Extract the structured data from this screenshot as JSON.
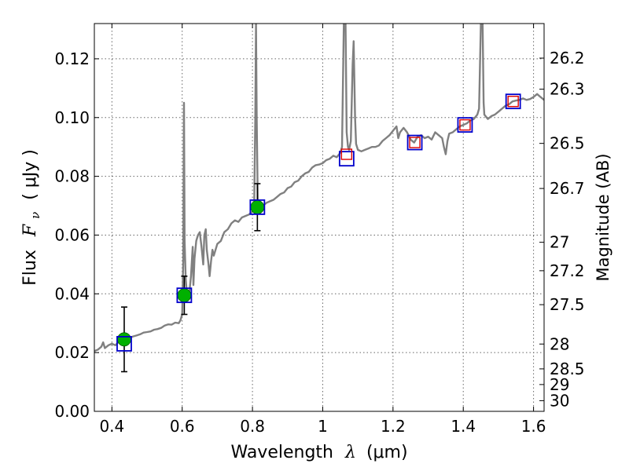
{
  "chart_data": {
    "type": "scatter",
    "xlabel_main": "Wavelength",
    "xlabel_symbol": "λ",
    "xlabel_unit": "(μm)",
    "ylabel_main": "Flux",
    "ylabel_symbol": "F",
    "ylabel_sub": "ν",
    "ylabel_unit": "( μJy )",
    "ylabel_right": "Magnitude (AB)",
    "xlim": [
      0.35,
      1.63
    ],
    "ylim": [
      0.0,
      0.132
    ],
    "grid": true,
    "x_ticks": [
      {
        "value": 0.4,
        "label": "0.4"
      },
      {
        "value": 0.6,
        "label": "0.6"
      },
      {
        "value": 0.8,
        "label": "0.8"
      },
      {
        "value": 1.0,
        "label": "1"
      },
      {
        "value": 1.2,
        "label": "1.2"
      },
      {
        "value": 1.4,
        "label": "1.4"
      },
      {
        "value": 1.6,
        "label": "1.6"
      }
    ],
    "y_ticks": [
      {
        "value": 0.0,
        "label": "0.00"
      },
      {
        "value": 0.02,
        "label": "0.02"
      },
      {
        "value": 0.04,
        "label": "0.04"
      },
      {
        "value": 0.06,
        "label": "0.06"
      },
      {
        "value": 0.08,
        "label": "0.08"
      },
      {
        "value": 0.1,
        "label": "0.10"
      },
      {
        "value": 0.12,
        "label": "0.12"
      }
    ],
    "right_ticks": [
      {
        "mag": 26.2,
        "label": "26.2"
      },
      {
        "mag": 26.3,
        "label": "26.3"
      },
      {
        "mag": 26.5,
        "label": "26.5"
      },
      {
        "mag": 26.7,
        "label": "26.7"
      },
      {
        "mag": 27.0,
        "label": "27"
      },
      {
        "mag": 27.2,
        "label": "27.2"
      },
      {
        "mag": 27.5,
        "label": "27.5"
      },
      {
        "mag": 28.0,
        "label": "28"
      },
      {
        "mag": 28.5,
        "label": "28.5"
      },
      {
        "mag": 29.0,
        "label": "29"
      },
      {
        "mag": 30.0,
        "label": "30"
      }
    ],
    "spectrum": {
      "color": "#808080",
      "points": [
        [
          0.35,
          0.0205
        ],
        [
          0.36,
          0.021
        ],
        [
          0.37,
          0.022
        ],
        [
          0.375,
          0.0235
        ],
        [
          0.38,
          0.0215
        ],
        [
          0.39,
          0.0225
        ],
        [
          0.4,
          0.023
        ],
        [
          0.41,
          0.0225
        ],
        [
          0.42,
          0.0238
        ],
        [
          0.43,
          0.0245
        ],
        [
          0.44,
          0.024
        ],
        [
          0.45,
          0.025
        ],
        [
          0.46,
          0.0255
        ],
        [
          0.47,
          0.0258
        ],
        [
          0.48,
          0.0262
        ],
        [
          0.49,
          0.0268
        ],
        [
          0.5,
          0.027
        ],
        [
          0.51,
          0.0272
        ],
        [
          0.52,
          0.0278
        ],
        [
          0.53,
          0.028
        ],
        [
          0.54,
          0.0284
        ],
        [
          0.55,
          0.0292
        ],
        [
          0.56,
          0.0296
        ],
        [
          0.57,
          0.0295
        ],
        [
          0.58,
          0.0302
        ],
        [
          0.59,
          0.03
        ],
        [
          0.595,
          0.031
        ],
        [
          0.6,
          0.033
        ],
        [
          0.603,
          0.052
        ],
        [
          0.605,
          0.105
        ],
        [
          0.607,
          0.058
        ],
        [
          0.61,
          0.045
        ],
        [
          0.615,
          0.038
        ],
        [
          0.62,
          0.04
        ],
        [
          0.625,
          0.046
        ],
        [
          0.63,
          0.056
        ],
        [
          0.632,
          0.043
        ],
        [
          0.635,
          0.052
        ],
        [
          0.64,
          0.058
        ],
        [
          0.645,
          0.06
        ],
        [
          0.65,
          0.061
        ],
        [
          0.655,
          0.056
        ],
        [
          0.66,
          0.05
        ],
        [
          0.663,
          0.06
        ],
        [
          0.667,
          0.062
        ],
        [
          0.67,
          0.055
        ],
        [
          0.675,
          0.05
        ],
        [
          0.678,
          0.046
        ],
        [
          0.682,
          0.051
        ],
        [
          0.686,
          0.055
        ],
        [
          0.69,
          0.053
        ],
        [
          0.7,
          0.057
        ],
        [
          0.71,
          0.058
        ],
        [
          0.72,
          0.061
        ],
        [
          0.73,
          0.062
        ],
        [
          0.74,
          0.064
        ],
        [
          0.75,
          0.065
        ],
        [
          0.76,
          0.0645
        ],
        [
          0.77,
          0.066
        ],
        [
          0.78,
          0.0665
        ],
        [
          0.79,
          0.067
        ],
        [
          0.8,
          0.068
        ],
        [
          0.805,
          0.07
        ],
        [
          0.808,
          0.1
        ],
        [
          0.81,
          0.132
        ],
        [
          0.812,
          0.1
        ],
        [
          0.815,
          0.072
        ],
        [
          0.82,
          0.069
        ],
        [
          0.83,
          0.07
        ],
        [
          0.84,
          0.071
        ],
        [
          0.85,
          0.0715
        ],
        [
          0.86,
          0.072
        ],
        [
          0.87,
          0.073
        ],
        [
          0.88,
          0.074
        ],
        [
          0.89,
          0.0745
        ],
        [
          0.9,
          0.076
        ],
        [
          0.91,
          0.0765
        ],
        [
          0.92,
          0.078
        ],
        [
          0.93,
          0.0785
        ],
        [
          0.94,
          0.08
        ],
        [
          0.95,
          0.081
        ],
        [
          0.96,
          0.0815
        ],
        [
          0.97,
          0.083
        ],
        [
          0.98,
          0.0838
        ],
        [
          0.99,
          0.084
        ],
        [
          1.0,
          0.0845
        ],
        [
          1.01,
          0.0855
        ],
        [
          1.02,
          0.086
        ],
        [
          1.03,
          0.087
        ],
        [
          1.04,
          0.0865
        ],
        [
          1.05,
          0.088
        ],
        [
          1.055,
          0.09
        ],
        [
          1.06,
          0.132
        ],
        [
          1.065,
          0.132
        ],
        [
          1.068,
          0.095
        ],
        [
          1.072,
          0.09
        ],
        [
          1.075,
          0.089
        ],
        [
          1.08,
          0.092
        ],
        [
          1.085,
          0.118
        ],
        [
          1.088,
          0.126
        ],
        [
          1.092,
          0.1
        ],
        [
          1.095,
          0.091
        ],
        [
          1.1,
          0.089
        ],
        [
          1.11,
          0.0885
        ],
        [
          1.12,
          0.089
        ],
        [
          1.13,
          0.0895
        ],
        [
          1.14,
          0.09
        ],
        [
          1.15,
          0.09
        ],
        [
          1.16,
          0.0905
        ],
        [
          1.17,
          0.092
        ],
        [
          1.18,
          0.093
        ],
        [
          1.19,
          0.094
        ],
        [
          1.2,
          0.0955
        ],
        [
          1.21,
          0.097
        ],
        [
          1.215,
          0.093
        ],
        [
          1.22,
          0.095
        ],
        [
          1.23,
          0.0965
        ],
        [
          1.24,
          0.095
        ],
        [
          1.25,
          0.0925
        ],
        [
          1.26,
          0.0915
        ],
        [
          1.27,
          0.0935
        ],
        [
          1.28,
          0.094
        ],
        [
          1.29,
          0.093
        ],
        [
          1.3,
          0.0935
        ],
        [
          1.31,
          0.0925
        ],
        [
          1.32,
          0.095
        ],
        [
          1.33,
          0.094
        ],
        [
          1.34,
          0.093
        ],
        [
          1.345,
          0.09
        ],
        [
          1.35,
          0.0875
        ],
        [
          1.355,
          0.092
        ],
        [
          1.36,
          0.0945
        ],
        [
          1.37,
          0.095
        ],
        [
          1.38,
          0.096
        ],
        [
          1.39,
          0.097
        ],
        [
          1.4,
          0.0975
        ],
        [
          1.41,
          0.098
        ],
        [
          1.42,
          0.099
        ],
        [
          1.43,
          0.0995
        ],
        [
          1.44,
          0.101
        ],
        [
          1.445,
          0.103
        ],
        [
          1.45,
          0.132
        ],
        [
          1.455,
          0.132
        ],
        [
          1.458,
          0.105
        ],
        [
          1.46,
          0.101
        ],
        [
          1.47,
          0.0995
        ],
        [
          1.48,
          0.1005
        ],
        [
          1.49,
          0.101
        ],
        [
          1.5,
          0.102
        ],
        [
          1.51,
          0.103
        ],
        [
          1.52,
          0.104
        ],
        [
          1.53,
          0.1045
        ],
        [
          1.54,
          0.1055
        ],
        [
          1.55,
          0.1058
        ],
        [
          1.56,
          0.106
        ],
        [
          1.57,
          0.1065
        ],
        [
          1.58,
          0.106
        ],
        [
          1.59,
          0.1063
        ],
        [
          1.6,
          0.107
        ],
        [
          1.61,
          0.108
        ],
        [
          1.62,
          0.107
        ],
        [
          1.63,
          0.106
        ]
      ]
    },
    "observed_points": {
      "color": "#00b000",
      "values": [
        {
          "x": 0.435,
          "y": 0.0245,
          "err_low": 0.011,
          "err_high": 0.011
        },
        {
          "x": 0.606,
          "y": 0.0395,
          "err_low": 0.0065,
          "err_high": 0.0065
        },
        {
          "x": 0.814,
          "y": 0.0695,
          "err_low": 0.008,
          "err_high": 0.008
        }
      ]
    },
    "model_boxes_blue": {
      "color": "#0000cc",
      "values": [
        {
          "x": 0.435,
          "y": 0.023
        },
        {
          "x": 0.606,
          "y": 0.0395
        },
        {
          "x": 0.814,
          "y": 0.0695
        },
        {
          "x": 1.068,
          "y": 0.086
        },
        {
          "x": 1.262,
          "y": 0.0915
        },
        {
          "x": 1.405,
          "y": 0.0975
        },
        {
          "x": 1.542,
          "y": 0.1055
        }
      ]
    },
    "model_boxes_red": {
      "color": "#dd0000",
      "values": [
        {
          "x": 1.068,
          "y": 0.0875
        },
        {
          "x": 1.262,
          "y": 0.0915
        },
        {
          "x": 1.405,
          "y": 0.0975
        },
        {
          "x": 1.542,
          "y": 0.1055
        }
      ]
    }
  }
}
